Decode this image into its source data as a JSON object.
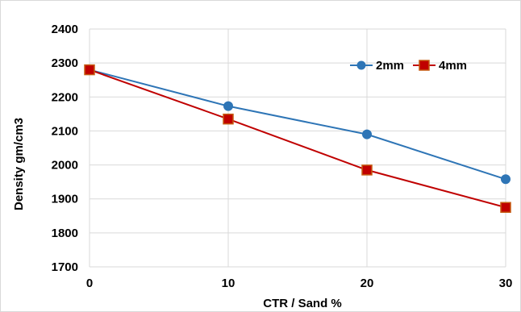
{
  "chart_data": {
    "type": "line",
    "title": "",
    "xlabel": "CTR / Sand %",
    "ylabel": "Density gm/cm3",
    "x": [
      0,
      10,
      20,
      30
    ],
    "xticks": [
      "0",
      "10",
      "20",
      "30"
    ],
    "xlim": [
      0,
      30
    ],
    "ylim": [
      1700,
      2400
    ],
    "yticks": [
      "1700",
      "1800",
      "1900",
      "2000",
      "2100",
      "2200",
      "2300",
      "2400"
    ],
    "grid": true,
    "legend_position": "top-right",
    "series": [
      {
        "name": "2mm",
        "values": [
          2280,
          2173,
          2090,
          1958
        ],
        "color": "#2e75b6",
        "marker": "circle"
      },
      {
        "name": "4mm",
        "values": [
          2280,
          2135,
          1985,
          1875
        ],
        "color": "#c00000",
        "marker": "square"
      }
    ]
  }
}
